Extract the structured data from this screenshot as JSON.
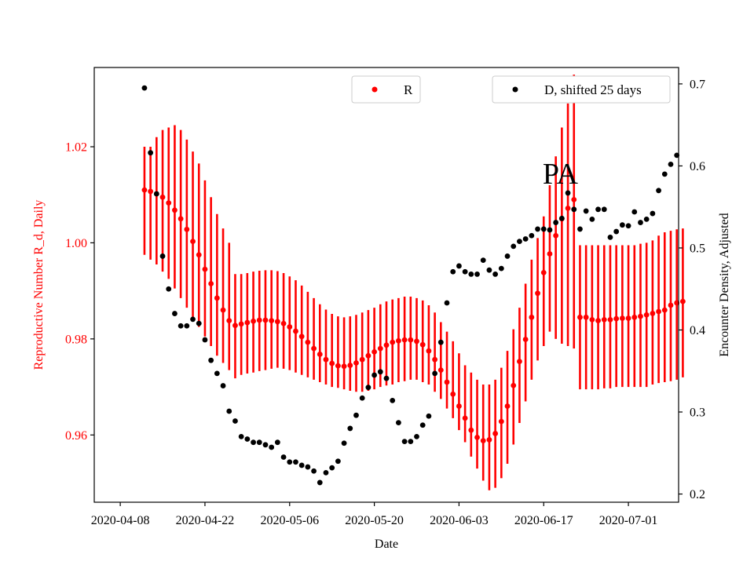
{
  "chart_data": {
    "type": "scatter",
    "region_label": "PA",
    "xlabel": "Date",
    "ylabel_left": "Reproductive Number R_d, Daily",
    "ylabel_right": "Encounter Density, Adjusted",
    "x_ticks": [
      "2020-04-08",
      "2020-04-22",
      "2020-05-06",
      "2020-05-20",
      "2020-06-03",
      "2020-06-17",
      "2020-07-01"
    ],
    "x_range_days": [
      -4.3,
      92.3
    ],
    "ylim_left": [
      0.946,
      1.0365
    ],
    "yticks_left": [
      "0.96",
      "0.98",
      "1.00",
      "1.02"
    ],
    "ylim_right": [
      0.19,
      0.72
    ],
    "yticks_right": [
      "0.2",
      "0.3",
      "0.4",
      "0.5",
      "0.6",
      "0.7"
    ],
    "colors": {
      "r_series": "#ff0000",
      "d_series": "#000000",
      "left_axis": "#ff0000"
    },
    "legends": {
      "r": {
        "label": "R",
        "location": "top-center"
      },
      "d": {
        "label": "D, shifted 25 days",
        "location": "top-right"
      }
    },
    "series": [
      {
        "name": "R",
        "axis": "left",
        "style": "points-with-errorbars",
        "start_day": 4,
        "values": [
          1.011,
          1.0107,
          1.0102,
          1.0095,
          1.0083,
          1.0068,
          1.005,
          1.0028,
          1.0003,
          0.9975,
          0.9945,
          0.9915,
          0.9885,
          0.986,
          0.9838,
          0.9828,
          0.9831,
          0.9834,
          0.9837,
          0.9839,
          0.9839,
          0.9838,
          0.9836,
          0.9832,
          0.9825,
          0.9816,
          0.9805,
          0.9793,
          0.978,
          0.9768,
          0.9757,
          0.9749,
          0.9744,
          0.9743,
          0.9745,
          0.975,
          0.9757,
          0.9765,
          0.9773,
          0.978,
          0.9787,
          0.9793,
          0.9796,
          0.9798,
          0.9798,
          0.9795,
          0.9788,
          0.9775,
          0.9757,
          0.9735,
          0.971,
          0.9685,
          0.966,
          0.9635,
          0.961,
          0.9595,
          0.9588,
          0.959,
          0.9603,
          0.9628,
          0.966,
          0.9703,
          0.9753,
          0.9799,
          0.9845,
          0.9895,
          0.9938,
          0.9977,
          1.0015,
          1.005,
          1.0072,
          1.009,
          0.9845,
          0.9845,
          0.984,
          0.9838,
          0.984,
          0.984,
          0.9842,
          0.9843,
          0.9843,
          0.9845,
          0.9847,
          0.985,
          0.9853,
          0.9857,
          0.986,
          0.987,
          0.9875,
          0.9878
        ],
        "err_low": [
          0.9975,
          0.9965,
          0.9955,
          0.994,
          0.9925,
          0.9905,
          0.9885,
          0.9865,
          0.9845,
          0.9825,
          0.9805,
          0.9785,
          0.9765,
          0.975,
          0.9735,
          0.9718,
          0.9725,
          0.9728,
          0.973,
          0.9733,
          0.9735,
          0.9738,
          0.974,
          0.9738,
          0.9735,
          0.973,
          0.9725,
          0.972,
          0.9715,
          0.971,
          0.9705,
          0.97,
          0.9698,
          0.9695,
          0.9692,
          0.969,
          0.969,
          0.9692,
          0.9695,
          0.97,
          0.9703,
          0.9705,
          0.971,
          0.9712,
          0.9715,
          0.9715,
          0.971,
          0.9705,
          0.969,
          0.9675,
          0.9655,
          0.9635,
          0.961,
          0.9585,
          0.9555,
          0.953,
          0.9505,
          0.9485,
          0.949,
          0.951,
          0.954,
          0.958,
          0.9625,
          0.967,
          0.9715,
          0.9755,
          0.9785,
          0.9815,
          0.98,
          0.979,
          0.9785,
          0.978,
          0.9695,
          0.9695,
          0.9695,
          0.9695,
          0.9697,
          0.9697,
          0.97,
          0.97,
          0.97,
          0.97,
          0.97,
          0.97,
          0.9705,
          0.9708,
          0.971,
          0.9712,
          0.9715,
          0.972
        ],
        "err_high": [
          1.02,
          1.02,
          1.022,
          1.0235,
          1.024,
          1.0245,
          1.0235,
          1.0215,
          1.019,
          1.0165,
          1.013,
          1.0095,
          1.006,
          1.003,
          1.0,
          0.9935,
          0.9935,
          0.9937,
          0.994,
          0.9942,
          0.9943,
          0.9943,
          0.9941,
          0.9937,
          0.993,
          0.9922,
          0.9911,
          0.9898,
          0.9885,
          0.9872,
          0.9861,
          0.9852,
          0.9847,
          0.9845,
          0.9847,
          0.985,
          0.9855,
          0.986,
          0.9865,
          0.9872,
          0.9878,
          0.9882,
          0.9885,
          0.9888,
          0.9888,
          0.9885,
          0.988,
          0.987,
          0.9855,
          0.9835,
          0.9815,
          0.9795,
          0.977,
          0.9745,
          0.973,
          0.9715,
          0.9705,
          0.9705,
          0.9715,
          0.974,
          0.9775,
          0.982,
          0.9865,
          0.9915,
          0.9965,
          1.001,
          1.0055,
          1.012,
          1.018,
          1.024,
          1.029,
          1.035,
          0.9995,
          0.9995,
          0.9995,
          0.9995,
          0.9995,
          0.9995,
          0.9995,
          0.9995,
          0.9995,
          0.9995,
          0.9998,
          1.0,
          1.0005,
          1.0015,
          1.0022,
          1.0025,
          1.0028,
          1.003
        ]
      },
      {
        "name": "D, shifted 25 days",
        "axis": "right",
        "style": "points",
        "start_day": 4,
        "values": [
          0.695,
          0.616,
          0.566,
          0.49,
          0.45,
          0.42,
          0.405,
          0.405,
          0.413,
          0.408,
          0.388,
          0.363,
          0.347,
          0.332,
          0.301,
          0.289,
          0.27,
          0.267,
          0.263,
          0.263,
          0.26,
          0.257,
          0.263,
          0.245,
          0.239,
          0.239,
          0.235,
          0.233,
          0.228,
          0.214,
          0.226,
          0.232,
          0.24,
          0.262,
          0.28,
          0.296,
          0.317,
          0.33,
          0.345,
          0.349,
          0.341,
          0.314,
          0.287,
          0.264,
          0.264,
          0.27,
          0.284,
          0.295,
          0.347,
          0.385,
          0.433,
          0.471,
          0.478,
          0.471,
          0.468,
          0.468,
          0.485,
          0.473,
          0.468,
          0.475,
          0.49,
          0.502,
          0.508,
          0.511,
          0.515,
          0.523,
          0.523,
          0.522,
          0.531,
          0.536,
          0.567,
          0.547,
          0.523,
          0.545,
          0.535,
          0.547,
          0.547,
          0.513,
          0.52,
          0.528,
          0.527,
          0.544,
          0.531,
          0.535,
          0.542,
          0.57,
          0.59,
          0.602,
          0.613
        ]
      }
    ]
  }
}
